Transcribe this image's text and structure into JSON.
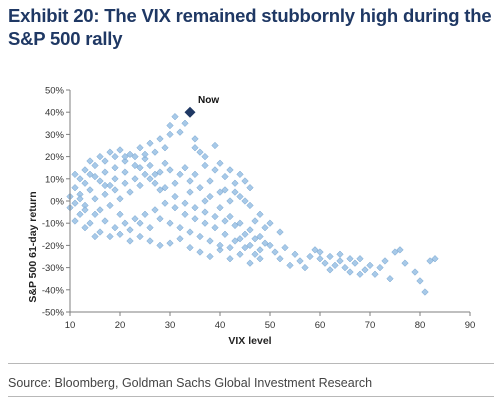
{
  "title": "Exhibit 20: The VIX remained stubbornly high during the S&P 500 rally",
  "source": "Source: Bloomberg, Goldman Sachs Global Investment Research",
  "colors": {
    "title": "#1f3864",
    "point": "#9dc3e6",
    "point_stroke": "#6f9fcc",
    "highlight": "#1f3864",
    "axis": "#7f7f7f"
  },
  "chart_data": {
    "type": "scatter",
    "xlabel": "VIX level",
    "ylabel": "S&P 500 61-day return",
    "xlim": [
      10,
      90
    ],
    "ylim": [
      -50,
      50
    ],
    "x_ticks": [
      10,
      20,
      30,
      40,
      50,
      60,
      70,
      80,
      90
    ],
    "y_ticks": [
      -50,
      -40,
      -30,
      -20,
      -10,
      0,
      10,
      20,
      30,
      40,
      50
    ],
    "y_tick_format": "percent",
    "grid": false,
    "series": [
      {
        "points": [
          [
            14,
            18
          ],
          [
            16,
            20
          ],
          [
            18,
            22
          ],
          [
            20,
            23
          ],
          [
            22,
            21
          ],
          [
            24,
            24
          ],
          [
            25,
            19
          ],
          [
            26,
            26
          ],
          [
            28,
            28
          ],
          [
            30,
            30
          ],
          [
            30,
            34
          ],
          [
            31,
            38
          ],
          [
            33,
            35
          ],
          [
            32,
            31
          ],
          [
            35,
            24
          ],
          [
            36,
            22
          ],
          [
            39,
            25
          ],
          [
            37,
            20
          ],
          [
            40,
            17
          ],
          [
            42,
            14
          ],
          [
            44,
            12
          ],
          [
            45,
            9
          ],
          [
            46,
            6
          ],
          [
            43,
            8
          ],
          [
            41,
            5
          ],
          [
            38,
            9
          ],
          [
            35,
            12
          ],
          [
            33,
            15
          ],
          [
            29,
            17
          ],
          [
            27,
            12
          ],
          [
            23,
            10
          ],
          [
            21,
            8
          ],
          [
            19,
            5
          ],
          [
            17,
            3
          ],
          [
            15,
            1
          ],
          [
            13,
            -2
          ],
          [
            12,
            3
          ],
          [
            11,
            6
          ],
          [
            12,
            10
          ],
          [
            13,
            14
          ],
          [
            15,
            16
          ],
          [
            17,
            13
          ],
          [
            19,
            15
          ],
          [
            21,
            18
          ],
          [
            24,
            15
          ],
          [
            26,
            10
          ],
          [
            28,
            5
          ],
          [
            31,
            8
          ],
          [
            34,
            4
          ],
          [
            37,
            0
          ],
          [
            40,
            -3
          ],
          [
            42,
            -7
          ],
          [
            44,
            -10
          ],
          [
            46,
            -13
          ],
          [
            48,
            -16
          ],
          [
            50,
            -20
          ],
          [
            47,
            -24
          ],
          [
            45,
            -21
          ],
          [
            43,
            -18
          ],
          [
            41,
            -15
          ],
          [
            39,
            -12
          ],
          [
            37,
            -10
          ],
          [
            35,
            -8
          ],
          [
            33,
            -6
          ],
          [
            31,
            -3
          ],
          [
            29,
            -1
          ],
          [
            27,
            -4
          ],
          [
            25,
            -6
          ],
          [
            23,
            -8
          ],
          [
            21,
            -10
          ],
          [
            19,
            -12
          ],
          [
            17,
            -9
          ],
          [
            15,
            -6
          ],
          [
            13,
            -4
          ],
          [
            11,
            -1
          ],
          [
            14,
            -10
          ],
          [
            16,
            -14
          ],
          [
            18,
            -16
          ],
          [
            20,
            -15
          ],
          [
            22,
            -13
          ],
          [
            24,
            -16
          ],
          [
            26,
            -18
          ],
          [
            28,
            -20
          ],
          [
            30,
            -19
          ],
          [
            32,
            -17
          ],
          [
            34,
            -21
          ],
          [
            36,
            -23
          ],
          [
            38,
            -25
          ],
          [
            40,
            -22
          ],
          [
            42,
            -26
          ],
          [
            44,
            -24
          ],
          [
            46,
            -28
          ],
          [
            48,
            -26
          ],
          [
            51,
            -23
          ],
          [
            53,
            -21
          ],
          [
            55,
            -24
          ],
          [
            56,
            -27
          ],
          [
            58,
            -25
          ],
          [
            59,
            -22
          ],
          [
            60,
            -26
          ],
          [
            61,
            -28
          ],
          [
            62,
            -31
          ],
          [
            63,
            -29
          ],
          [
            64,
            -27
          ],
          [
            65,
            -30
          ],
          [
            66,
            -32
          ],
          [
            67,
            -28
          ],
          [
            68,
            -26
          ],
          [
            69,
            -31
          ],
          [
            70,
            -29
          ],
          [
            71,
            -33
          ],
          [
            72,
            -30
          ],
          [
            73,
            -27
          ],
          [
            74,
            -35
          ],
          [
            75,
            -23
          ],
          [
            76,
            -22
          ],
          [
            77,
            -28
          ],
          [
            79,
            -32
          ],
          [
            80,
            -36
          ],
          [
            81,
            -41
          ],
          [
            82,
            -27
          ],
          [
            83,
            -26
          ],
          [
            52,
            -26
          ],
          [
            54,
            -29
          ],
          [
            57,
            -30
          ],
          [
            60,
            -23
          ],
          [
            62,
            -25
          ],
          [
            64,
            -24
          ],
          [
            66,
            -26
          ],
          [
            68,
            -33
          ],
          [
            50,
            -10
          ],
          [
            52,
            -14
          ],
          [
            48,
            -6
          ],
          [
            46,
            -2
          ],
          [
            44,
            2
          ],
          [
            42,
            0
          ],
          [
            40,
            4
          ],
          [
            38,
            2
          ],
          [
            36,
            6
          ],
          [
            34,
            9
          ],
          [
            32,
            12
          ],
          [
            30,
            14
          ],
          [
            28,
            13
          ],
          [
            26,
            16
          ],
          [
            24,
            7
          ],
          [
            22,
            4
          ],
          [
            20,
            1
          ],
          [
            18,
            -2
          ],
          [
            16,
            -4
          ],
          [
            14,
            5
          ],
          [
            12,
            -6
          ],
          [
            11,
            -9
          ],
          [
            13,
            8
          ],
          [
            15,
            11
          ],
          [
            17,
            7
          ],
          [
            19,
            10
          ],
          [
            21,
            13
          ],
          [
            23,
            16
          ],
          [
            25,
            12
          ],
          [
            27,
            8
          ],
          [
            29,
            6
          ],
          [
            31,
            2
          ],
          [
            33,
            -1
          ],
          [
            35,
            -3
          ],
          [
            37,
            -5
          ],
          [
            39,
            -7
          ],
          [
            41,
            -9
          ],
          [
            43,
            -11
          ],
          [
            45,
            -15
          ],
          [
            47,
            -17
          ],
          [
            49,
            -19
          ],
          [
            36,
            -16
          ],
          [
            34,
            -14
          ],
          [
            32,
            -12
          ],
          [
            30,
            -10
          ],
          [
            28,
            -8
          ],
          [
            26,
            -12
          ],
          [
            24,
            -10
          ],
          [
            22,
            -18
          ],
          [
            20,
            -6
          ],
          [
            18,
            7
          ],
          [
            16,
            9
          ],
          [
            14,
            12
          ],
          [
            12,
            1
          ],
          [
            10,
            2
          ],
          [
            10,
            -3
          ],
          [
            11,
            12
          ],
          [
            13,
            -12
          ],
          [
            15,
            -16
          ],
          [
            38,
            -18
          ],
          [
            40,
            -20
          ],
          [
            42,
            -21
          ],
          [
            44,
            -17
          ],
          [
            46,
            -20
          ],
          [
            48,
            -22
          ],
          [
            29,
            24
          ],
          [
            27,
            22
          ],
          [
            25,
            21
          ],
          [
            23,
            20
          ],
          [
            21,
            20
          ],
          [
            19,
            20
          ],
          [
            17,
            18
          ],
          [
            35,
            28
          ],
          [
            37,
            16
          ],
          [
            39,
            14
          ],
          [
            41,
            11
          ],
          [
            43,
            4
          ],
          [
            45,
            0
          ],
          [
            47,
            -9
          ],
          [
            49,
            -12
          ]
        ]
      }
    ],
    "highlight": {
      "x": 34,
      "y": 40,
      "label": "Now"
    }
  }
}
